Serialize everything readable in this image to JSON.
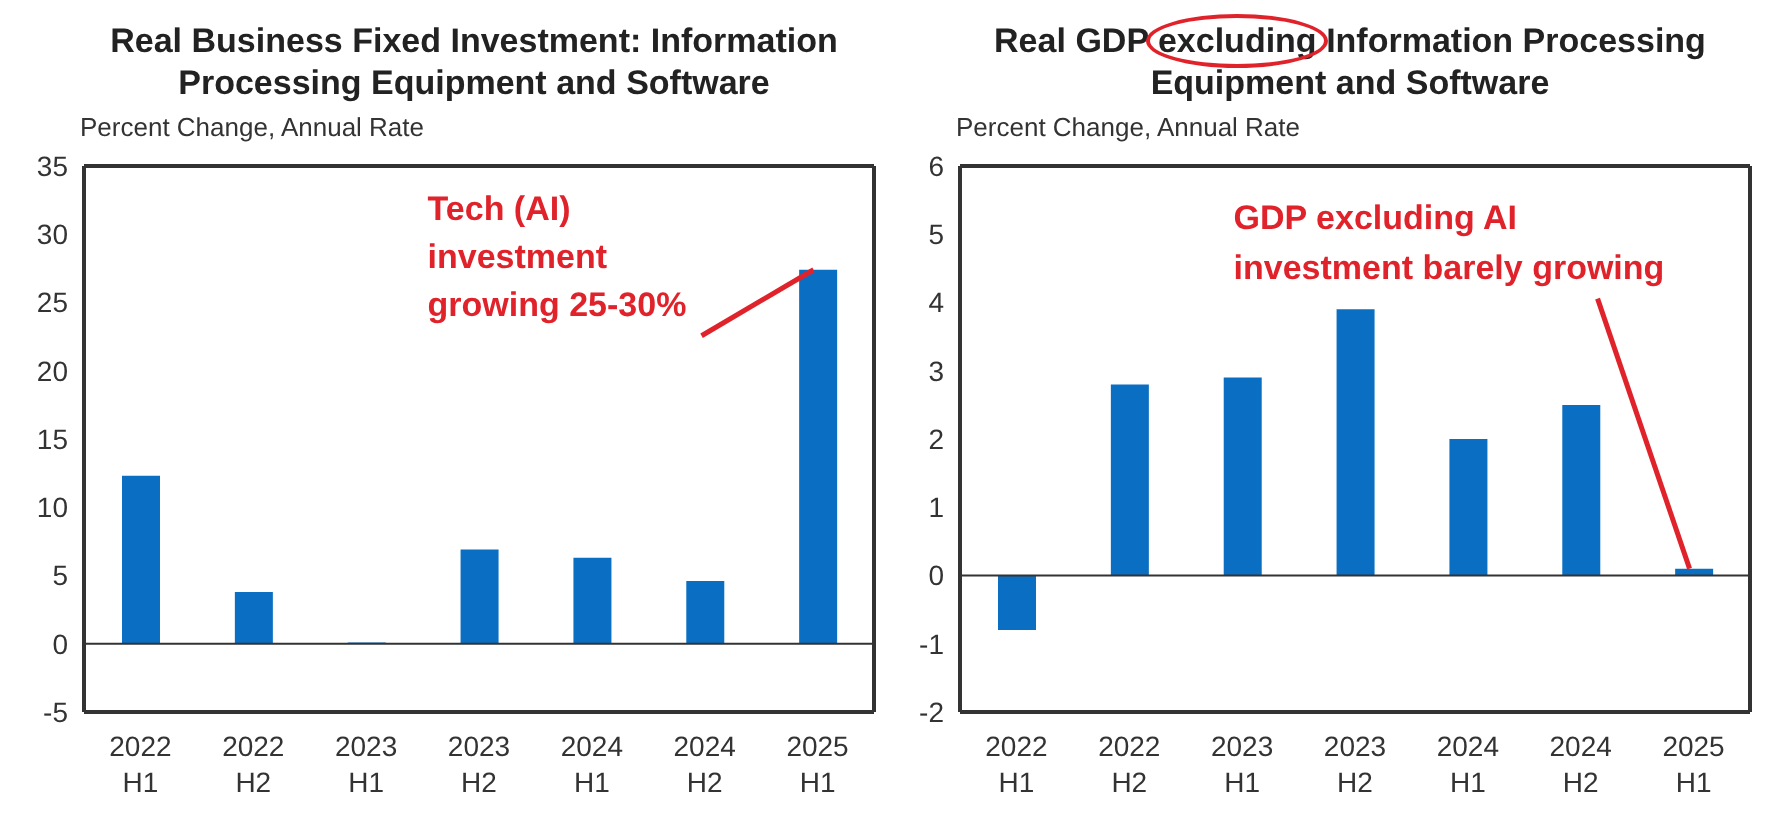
{
  "chart_data": [
    {
      "type": "bar",
      "title": "Real Business Fixed Investment: Information Processing Equipment and Software",
      "ylabel": "Percent Change, Annual Rate",
      "categories": [
        "2022 H1",
        "2022 H2",
        "2023 H1",
        "2023 H2",
        "2024 H1",
        "2024 H2",
        "2025 H1"
      ],
      "values": [
        12.3,
        3.8,
        0.1,
        6.9,
        6.3,
        4.6,
        27.4
      ],
      "color": "#0a6fc2",
      "ylim": [
        -5,
        35
      ],
      "yticks": [
        -5,
        0,
        5,
        10,
        15,
        20,
        25,
        30,
        35
      ],
      "ref_lines": [
        {
          "axis": "y",
          "value": 0
        }
      ],
      "annotations": [
        {
          "text": "Tech (AI)\ninvestment\ngrowing 25-30%",
          "x": "2025 H1",
          "y": 27.4
        }
      ]
    },
    {
      "type": "bar",
      "title": "Real GDP excluding Information Processing Equipment and Software",
      "ylabel": "Percent Change, Annual Rate",
      "categories": [
        "2022 H1",
        "2022 H2",
        "2023 H1",
        "2023 H2",
        "2024 H1",
        "2024 H2",
        "2025 H1"
      ],
      "values": [
        -0.8,
        2.8,
        2.9,
        3.9,
        2.0,
        2.5,
        0.1
      ],
      "color": "#0a6fc2",
      "ylim": [
        -2,
        6
      ],
      "yticks": [
        -2,
        -1,
        0,
        1,
        2,
        3,
        4,
        5,
        6
      ],
      "ref_lines": [
        {
          "axis": "y",
          "value": 0
        }
      ],
      "annotations": [
        {
          "text": "GDP excluding AI\ninvestment barely growing",
          "x": "2025 H1",
          "y": 0.1
        }
      ]
    }
  ]
}
